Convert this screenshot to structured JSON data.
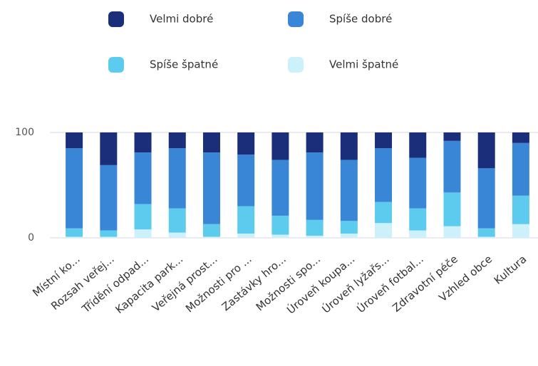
{
  "chart_data": {
    "type": "stacked_bar",
    "categories": [
      "Místní ko...",
      "Rozsah veřej...",
      "Třídění odpad...",
      "Kapacita park...",
      "Veřejná prost...",
      "Možnosti pro ...",
      "Zastávky hro...",
      "Možnosti spo...",
      "Úroveň koupa...",
      "Úroveň lyžařs...",
      "Úroveň fotbal...",
      "Zdravotní péče",
      "Vzhled obce",
      "Kultura"
    ],
    "series": [
      {
        "name": "Velmi špatné",
        "color": "#cdf1fb",
        "values": [
          1,
          1,
          8,
          5,
          1,
          4,
          3,
          2,
          4,
          14,
          7,
          11,
          1,
          13
        ]
      },
      {
        "name": "Spíše špatné",
        "color": "#5ccbee",
        "values": [
          8,
          6,
          24,
          23,
          12,
          26,
          18,
          15,
          12,
          20,
          21,
          32,
          8,
          27
        ]
      },
      {
        "name": "Spíše dobré",
        "color": "#3a86d6",
        "values": [
          76,
          62,
          49,
          57,
          68,
          49,
          53,
          64,
          58,
          51,
          48,
          49,
          57,
          50
        ]
      },
      {
        "name": "Velmi dobré",
        "color": "#1b2e7a",
        "values": [
          15,
          31,
          19,
          15,
          19,
          21,
          26,
          19,
          26,
          15,
          24,
          8,
          34,
          10
        ]
      }
    ],
    "legend_order": [
      3,
      2,
      1,
      0
    ],
    "ylim": [
      0,
      100
    ],
    "yticks": [
      0,
      100
    ],
    "grid": true
  }
}
